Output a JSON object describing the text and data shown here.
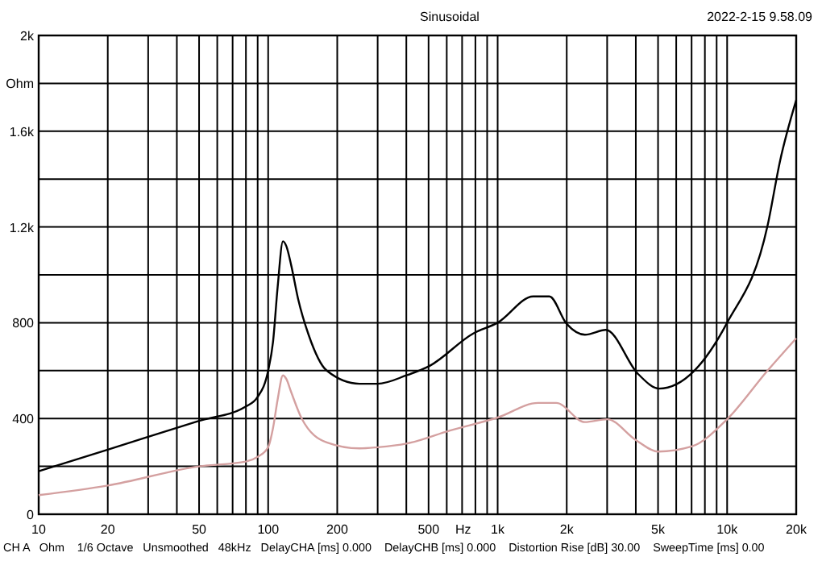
{
  "chart_data": {
    "type": "line",
    "title": "Sinusoidal",
    "xlabel": "Hz",
    "ylabel": "Ohm",
    "annotations": [
      "2022-2-15 9.58.09",
      "CH A   Ohm    1/6 Octave   Unsmoothed   48kHz   DelayCHA [ms] 0.000    DelayCHB [ms] 0.000    Distortion Rise [dB] 30.00    SweepTime [ms] 0.00"
    ],
    "log": "x",
    "grid": true,
    "xlim": [
      10,
      20000
    ],
    "ylim": [
      0,
      2000
    ],
    "xticks": [
      10,
      20,
      {
        "value": 30,
        "label": null
      },
      {
        "value": 40,
        "label": null
      },
      50,
      {
        "value": 60,
        "label": null
      },
      {
        "value": 70,
        "label": null
      },
      {
        "value": 80,
        "label": null
      },
      {
        "value": 90,
        "label": null
      },
      100,
      200,
      {
        "value": 300,
        "label": null
      },
      {
        "value": 400,
        "label": null
      },
      500,
      {
        "value": 600,
        "label": null
      },
      {
        "value": 700,
        "label": null
      },
      {
        "value": 800,
        "label": null
      },
      {
        "value": 900,
        "label": null
      },
      {
        "value": 1000,
        "label": "1k"
      },
      {
        "value": 2000,
        "label": "2k"
      },
      {
        "value": 3000,
        "label": null
      },
      {
        "value": 4000,
        "label": null
      },
      {
        "value": 5000,
        "label": "5k"
      },
      {
        "value": 6000,
        "label": null
      },
      {
        "value": 7000,
        "label": null
      },
      {
        "value": 8000,
        "label": null
      },
      {
        "value": 9000,
        "label": null
      },
      {
        "value": 10000,
        "label": "10k"
      },
      {
        "value": 20000,
        "label": "20k"
      }
    ],
    "yticks": [
      0,
      {
        "value": 200,
        "label": null
      },
      400,
      {
        "value": 600,
        "label": null
      },
      800,
      {
        "value": 1000,
        "label": null
      },
      {
        "value": 1200,
        "label": "1.2k"
      },
      {
        "value": 1400,
        "label": null
      },
      {
        "value": 1600,
        "label": "1.6k"
      },
      {
        "value": 1800,
        "label": null
      },
      {
        "value": 2000,
        "label": "2k"
      }
    ],
    "series": [
      {
        "color": "#000000",
        "x": [
          10,
          20,
          50,
          80,
          90,
          100,
          105,
          110,
          116,
          120,
          126,
          135,
          150,
          180,
          250,
          300,
          400,
          506,
          783,
          1000,
          1430,
          1680,
          2000,
          2400,
          2960,
          4100,
          5050,
          7200,
          10000,
          15000,
          17000,
          20000
        ],
        "values": [
          180,
          270,
          390,
          450,
          490,
          600,
          720,
          950,
          1140,
          1120,
          1040,
          900,
          750,
          600,
          545,
          545,
          580,
          620,
          755,
          800,
          910,
          910,
          795,
          750,
          770,
          585,
          525,
          600,
          800,
          1205,
          1475,
          1730
        ]
      },
      {
        "color": "#d4a0a0",
        "x": [
          10,
          20,
          50,
          80,
          90,
          100,
          105,
          110,
          116,
          120,
          126,
          140,
          180,
          250,
          300,
          400,
          620,
          1000,
          1500,
          1800,
          2400,
          3000,
          4000,
          5000,
          7000,
          10000,
          15000,
          20000
        ],
        "values": [
          80,
          120,
          200,
          220,
          240,
          280,
          360,
          480,
          580,
          565,
          510,
          400,
          300,
          275,
          280,
          295,
          350,
          404,
          465,
          465,
          385,
          397,
          310,
          262,
          283,
          397,
          600,
          735
        ]
      }
    ]
  }
}
